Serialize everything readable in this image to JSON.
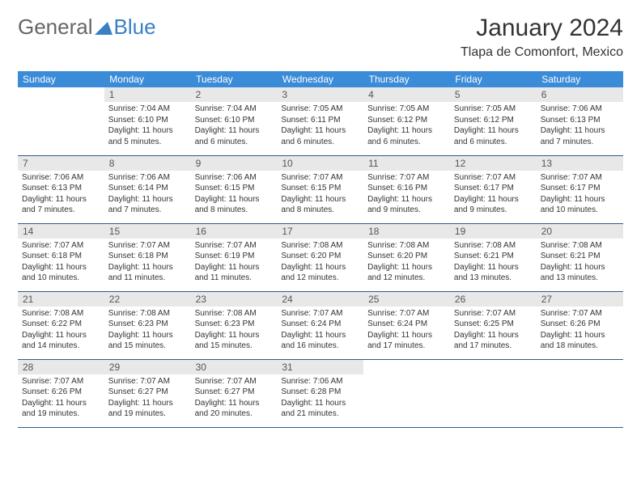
{
  "logo": {
    "text1": "General",
    "text2": "Blue"
  },
  "title": "January 2024",
  "location": "Tlapa de Comonfort, Mexico",
  "headers": [
    "Sunday",
    "Monday",
    "Tuesday",
    "Wednesday",
    "Thursday",
    "Friday",
    "Saturday"
  ],
  "colors": {
    "header_bg": "#3a8bd8",
    "header_fg": "#ffffff",
    "daynum_bg": "#e8e8e8",
    "row_border": "#2f5a8c",
    "logo_blue": "#3a7fc4"
  },
  "weeks": [
    [
      {
        "n": "",
        "lines": [
          "",
          "",
          "",
          ""
        ]
      },
      {
        "n": "1",
        "lines": [
          "Sunrise: 7:04 AM",
          "Sunset: 6:10 PM",
          "Daylight: 11 hours",
          "and 5 minutes."
        ]
      },
      {
        "n": "2",
        "lines": [
          "Sunrise: 7:04 AM",
          "Sunset: 6:10 PM",
          "Daylight: 11 hours",
          "and 6 minutes."
        ]
      },
      {
        "n": "3",
        "lines": [
          "Sunrise: 7:05 AM",
          "Sunset: 6:11 PM",
          "Daylight: 11 hours",
          "and 6 minutes."
        ]
      },
      {
        "n": "4",
        "lines": [
          "Sunrise: 7:05 AM",
          "Sunset: 6:12 PM",
          "Daylight: 11 hours",
          "and 6 minutes."
        ]
      },
      {
        "n": "5",
        "lines": [
          "Sunrise: 7:05 AM",
          "Sunset: 6:12 PM",
          "Daylight: 11 hours",
          "and 6 minutes."
        ]
      },
      {
        "n": "6",
        "lines": [
          "Sunrise: 7:06 AM",
          "Sunset: 6:13 PM",
          "Daylight: 11 hours",
          "and 7 minutes."
        ]
      }
    ],
    [
      {
        "n": "7",
        "lines": [
          "Sunrise: 7:06 AM",
          "Sunset: 6:13 PM",
          "Daylight: 11 hours",
          "and 7 minutes."
        ]
      },
      {
        "n": "8",
        "lines": [
          "Sunrise: 7:06 AM",
          "Sunset: 6:14 PM",
          "Daylight: 11 hours",
          "and 7 minutes."
        ]
      },
      {
        "n": "9",
        "lines": [
          "Sunrise: 7:06 AM",
          "Sunset: 6:15 PM",
          "Daylight: 11 hours",
          "and 8 minutes."
        ]
      },
      {
        "n": "10",
        "lines": [
          "Sunrise: 7:07 AM",
          "Sunset: 6:15 PM",
          "Daylight: 11 hours",
          "and 8 minutes."
        ]
      },
      {
        "n": "11",
        "lines": [
          "Sunrise: 7:07 AM",
          "Sunset: 6:16 PM",
          "Daylight: 11 hours",
          "and 9 minutes."
        ]
      },
      {
        "n": "12",
        "lines": [
          "Sunrise: 7:07 AM",
          "Sunset: 6:17 PM",
          "Daylight: 11 hours",
          "and 9 minutes."
        ]
      },
      {
        "n": "13",
        "lines": [
          "Sunrise: 7:07 AM",
          "Sunset: 6:17 PM",
          "Daylight: 11 hours",
          "and 10 minutes."
        ]
      }
    ],
    [
      {
        "n": "14",
        "lines": [
          "Sunrise: 7:07 AM",
          "Sunset: 6:18 PM",
          "Daylight: 11 hours",
          "and 10 minutes."
        ]
      },
      {
        "n": "15",
        "lines": [
          "Sunrise: 7:07 AM",
          "Sunset: 6:18 PM",
          "Daylight: 11 hours",
          "and 11 minutes."
        ]
      },
      {
        "n": "16",
        "lines": [
          "Sunrise: 7:07 AM",
          "Sunset: 6:19 PM",
          "Daylight: 11 hours",
          "and 11 minutes."
        ]
      },
      {
        "n": "17",
        "lines": [
          "Sunrise: 7:08 AM",
          "Sunset: 6:20 PM",
          "Daylight: 11 hours",
          "and 12 minutes."
        ]
      },
      {
        "n": "18",
        "lines": [
          "Sunrise: 7:08 AM",
          "Sunset: 6:20 PM",
          "Daylight: 11 hours",
          "and 12 minutes."
        ]
      },
      {
        "n": "19",
        "lines": [
          "Sunrise: 7:08 AM",
          "Sunset: 6:21 PM",
          "Daylight: 11 hours",
          "and 13 minutes."
        ]
      },
      {
        "n": "20",
        "lines": [
          "Sunrise: 7:08 AM",
          "Sunset: 6:21 PM",
          "Daylight: 11 hours",
          "and 13 minutes."
        ]
      }
    ],
    [
      {
        "n": "21",
        "lines": [
          "Sunrise: 7:08 AM",
          "Sunset: 6:22 PM",
          "Daylight: 11 hours",
          "and 14 minutes."
        ]
      },
      {
        "n": "22",
        "lines": [
          "Sunrise: 7:08 AM",
          "Sunset: 6:23 PM",
          "Daylight: 11 hours",
          "and 15 minutes."
        ]
      },
      {
        "n": "23",
        "lines": [
          "Sunrise: 7:08 AM",
          "Sunset: 6:23 PM",
          "Daylight: 11 hours",
          "and 15 minutes."
        ]
      },
      {
        "n": "24",
        "lines": [
          "Sunrise: 7:07 AM",
          "Sunset: 6:24 PM",
          "Daylight: 11 hours",
          "and 16 minutes."
        ]
      },
      {
        "n": "25",
        "lines": [
          "Sunrise: 7:07 AM",
          "Sunset: 6:24 PM",
          "Daylight: 11 hours",
          "and 17 minutes."
        ]
      },
      {
        "n": "26",
        "lines": [
          "Sunrise: 7:07 AM",
          "Sunset: 6:25 PM",
          "Daylight: 11 hours",
          "and 17 minutes."
        ]
      },
      {
        "n": "27",
        "lines": [
          "Sunrise: 7:07 AM",
          "Sunset: 6:26 PM",
          "Daylight: 11 hours",
          "and 18 minutes."
        ]
      }
    ],
    [
      {
        "n": "28",
        "lines": [
          "Sunrise: 7:07 AM",
          "Sunset: 6:26 PM",
          "Daylight: 11 hours",
          "and 19 minutes."
        ]
      },
      {
        "n": "29",
        "lines": [
          "Sunrise: 7:07 AM",
          "Sunset: 6:27 PM",
          "Daylight: 11 hours",
          "and 19 minutes."
        ]
      },
      {
        "n": "30",
        "lines": [
          "Sunrise: 7:07 AM",
          "Sunset: 6:27 PM",
          "Daylight: 11 hours",
          "and 20 minutes."
        ]
      },
      {
        "n": "31",
        "lines": [
          "Sunrise: 7:06 AM",
          "Sunset: 6:28 PM",
          "Daylight: 11 hours",
          "and 21 minutes."
        ]
      },
      {
        "n": "",
        "lines": [
          "",
          "",
          "",
          ""
        ]
      },
      {
        "n": "",
        "lines": [
          "",
          "",
          "",
          ""
        ]
      },
      {
        "n": "",
        "lines": [
          "",
          "",
          "",
          ""
        ]
      }
    ]
  ]
}
